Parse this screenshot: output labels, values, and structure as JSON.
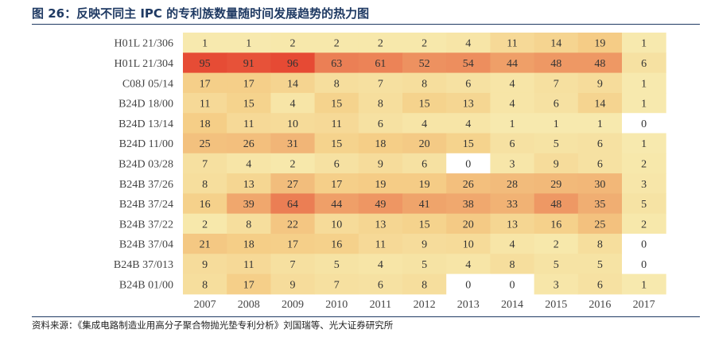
{
  "caption": "图 26：反映不同主 IPC 的专利族数量随时间发展趋势的热力图",
  "source": "资料来源：《集成电路制造业用高分子聚合物抛光垫专利分析》刘国瑞等、光大证券研究所",
  "chart_data": {
    "type": "heatmap",
    "rows": [
      "H01L 21/306",
      "H01L 21/304",
      "C08J 05/14",
      "B24D 18/00",
      "B24D 13/14",
      "B24D 11/00",
      "B24D 03/28",
      "B24B 37/26",
      "B24B 37/24",
      "B24B 37/22",
      "B24B 37/04",
      "B24B 37/013",
      "B24B 01/00"
    ],
    "columns": [
      "2007",
      "2008",
      "2009",
      "2010",
      "2011",
      "2012",
      "2013",
      "2014",
      "2015",
      "2016",
      "2017"
    ],
    "values": [
      [
        1,
        1,
        2,
        2,
        2,
        2,
        4,
        11,
        14,
        19,
        1
      ],
      [
        95,
        91,
        96,
        63,
        61,
        52,
        54,
        44,
        48,
        48,
        6
      ],
      [
        17,
        17,
        14,
        8,
        7,
        8,
        6,
        4,
        7,
        9,
        1
      ],
      [
        11,
        15,
        4,
        15,
        8,
        15,
        13,
        4,
        6,
        14,
        1
      ],
      [
        18,
        11,
        10,
        11,
        6,
        4,
        4,
        1,
        1,
        1,
        0
      ],
      [
        25,
        26,
        31,
        15,
        18,
        20,
        15,
        6,
        5,
        6,
        1
      ],
      [
        7,
        4,
        2,
        6,
        9,
        6,
        0,
        3,
        9,
        6,
        2
      ],
      [
        8,
        13,
        27,
        17,
        19,
        19,
        26,
        28,
        29,
        30,
        3
      ],
      [
        16,
        39,
        64,
        44,
        49,
        41,
        38,
        33,
        48,
        35,
        5
      ],
      [
        2,
        8,
        22,
        10,
        13,
        15,
        20,
        13,
        16,
        25,
        2
      ],
      [
        21,
        18,
        17,
        16,
        11,
        9,
        10,
        4,
        2,
        8,
        0
      ],
      [
        9,
        11,
        7,
        5,
        4,
        5,
        4,
        8,
        5,
        5,
        0
      ],
      [
        8,
        17,
        9,
        7,
        6,
        8,
        0,
        0,
        3,
        6,
        1
      ]
    ],
    "value_range": [
      0,
      96
    ],
    "colors": {
      "zero": "#ffffff",
      "low": "#f7ebb0",
      "mid1": "#f5cf88",
      "mid2": "#f0ab70",
      "mid3": "#ec8558",
      "high": "#e64a34"
    }
  }
}
